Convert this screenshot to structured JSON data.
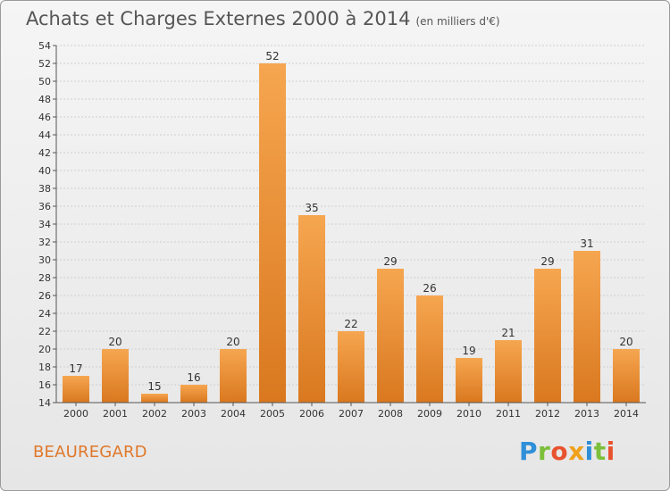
{
  "header": {
    "title": "Achats et Charges Externes 2000 à 2014",
    "subtitle": "(en milliers d'€)"
  },
  "footer": {
    "city": "BEAUREGARD"
  },
  "logo": {
    "letters": [
      "P",
      "r",
      "o",
      "x",
      "i",
      "t",
      "i"
    ],
    "colors": [
      "#2f8fd8",
      "#7cbf3a",
      "#e8522e",
      "#f0a11c",
      "#2f8fd8",
      "#7cbf3a",
      "#e8522e"
    ]
  },
  "chart_data": {
    "type": "bar",
    "title": "Achats et Charges Externes 2000 à 2014",
    "subtitle": "(en milliers d'€)",
    "categories": [
      "2000",
      "2001",
      "2002",
      "2003",
      "2004",
      "2005",
      "2006",
      "2007",
      "2008",
      "2009",
      "2010",
      "2011",
      "2012",
      "2013",
      "2014"
    ],
    "values": [
      17,
      20,
      15,
      16,
      20,
      52,
      35,
      22,
      29,
      26,
      19,
      21,
      29,
      31,
      20
    ],
    "ylim": [
      14,
      54
    ],
    "yticks": [
      14,
      16,
      18,
      20,
      22,
      24,
      26,
      28,
      30,
      32,
      34,
      36,
      38,
      40,
      42,
      44,
      46,
      48,
      50,
      52,
      54
    ],
    "grid": true,
    "bar_color_top": "#f6a650",
    "bar_color_bottom": "#d9781f"
  }
}
